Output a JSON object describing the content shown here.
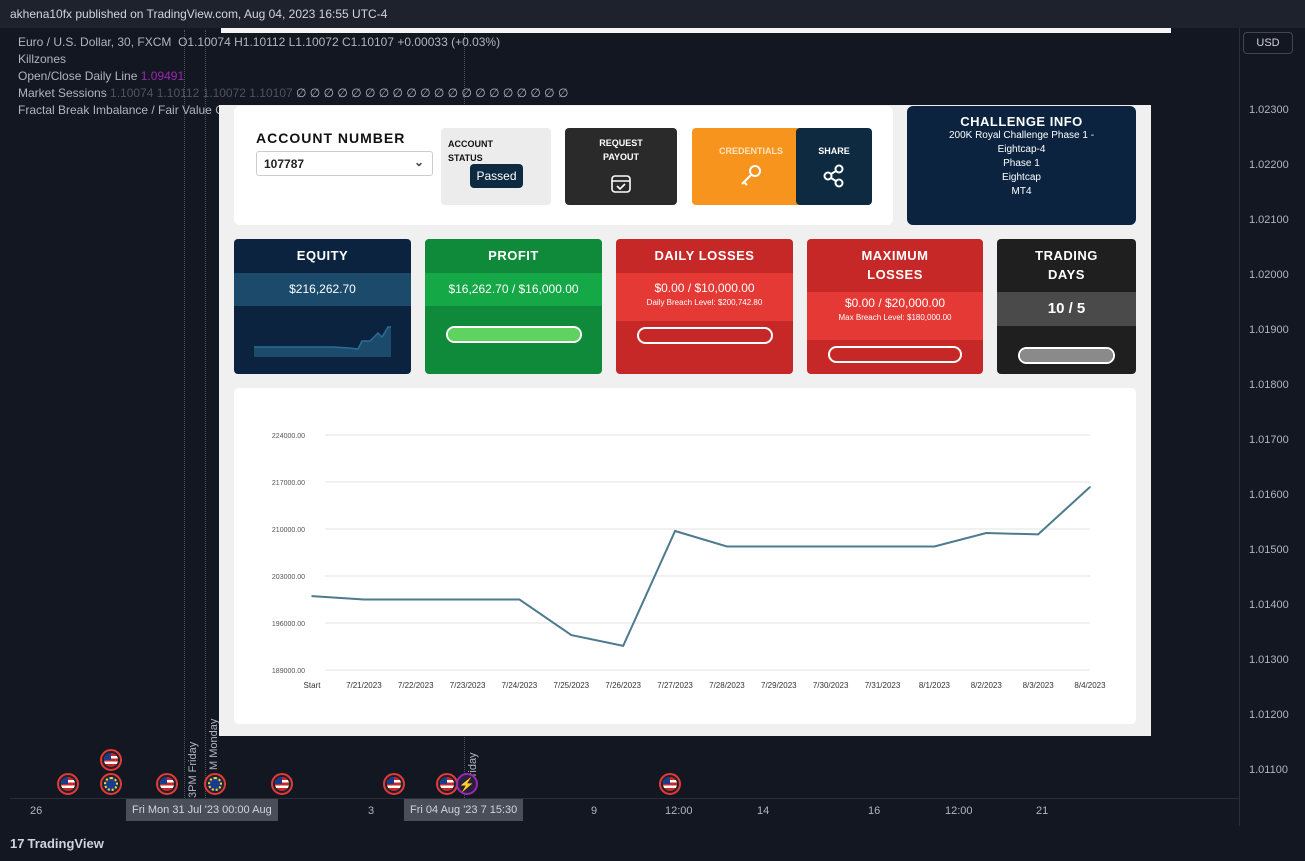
{
  "publish_line": "akhena10fx published on TradingView.com, Aug 04, 2023 16:55 UTC-4",
  "currency_button": "USD",
  "legend": {
    "symbol": "Euro / U.S. Dollar, 30, FXCM",
    "ohlc": "O1.10074  H1.10112  L1.10072  C1.10107  +0.00033 (+0.03%)",
    "killzones": "Killzones",
    "open_close_label": "Open/Close Daily Line",
    "open_close_value": "1.09491",
    "market_sessions": "Market Sessions",
    "market_sessions_values": "1.10074  1.10112  1.10072  1.10107",
    "market_sessions_zeros": "∅ ∅ ∅ ∅ ∅ ∅ ∅ ∅ ∅ ∅ ∅ ∅ ∅ ∅ ∅ ∅ ∅ ∅ ∅ ∅",
    "fractal": "Fractal Break Imbalance / Fair Value Gap (FVG) / Liquidity Void"
  },
  "price_axis": [
    "1.02300",
    "1.02200",
    "1.02100",
    "1.02000",
    "1.01900",
    "1.01800",
    "1.01700",
    "1.01600",
    "1.01500",
    "1.01400",
    "1.01300",
    "1.01200",
    "1.01100"
  ],
  "vertical_labels": {
    "friday_pm": "3PM Friday",
    "monday": "M Monday",
    "friday": "Friday"
  },
  "time_axis": {
    "labels": [
      "26",
      "3",
      "9",
      "12:00",
      "14",
      "16",
      "12:00",
      "21"
    ],
    "box_left": "Fri Mon 31 Jul '23  00:00 Aug",
    "box_right": "Fri 04 Aug '23  7 15:30"
  },
  "footer_brand": "TradingView",
  "footer_mark": "17",
  "dashboard": {
    "account_title": "ACCOUNT NUMBER",
    "account_number": "107787",
    "status_label": "ACCOUNT STATUS",
    "status_value": "Passed",
    "request_payout": "REQUEST PAYOUT",
    "credentials": "CREDENTIALS",
    "share": "SHARE",
    "challenge": {
      "title": "CHALLENGE INFO",
      "lines": [
        "200K Royal Challenge Phase 1 -",
        "Eightcap-4",
        "Phase 1",
        "Eightcap",
        "MT4"
      ]
    },
    "equity": {
      "label": "EQUITY",
      "value": "$216,262.70"
    },
    "profit": {
      "label": "PROFIT",
      "value": "$16,262.70 / $16,000.00",
      "progress": 1.0
    },
    "daily": {
      "label": "DAILY LOSSES",
      "value": "$0.00 / $10,000.00",
      "sub": "Daily Breach Level: $200,742.80",
      "progress": 0.0
    },
    "max": {
      "label_1": "MAXIMUM",
      "label_2": "LOSSES",
      "value": "$0.00 / $20,000.00",
      "sub": "Max Breach Level: $180,000.00",
      "progress": 0.0
    },
    "days": {
      "label_1": "TRADING",
      "label_2": "DAYS",
      "value": "10 / 5",
      "progress": 1.0
    }
  },
  "chart_data": {
    "type": "line",
    "title": "",
    "xlabel": "",
    "ylabel": "",
    "categories": [
      "Start",
      "7/21/2023",
      "7/22/2023",
      "7/23/2023",
      "7/24/2023",
      "7/25/2023",
      "7/26/2023",
      "7/27/2023",
      "7/28/2023",
      "7/29/2023",
      "7/30/2023",
      "7/31/2023",
      "8/1/2023",
      "8/2/2023",
      "8/3/2023",
      "8/4/2023"
    ],
    "values": [
      200000,
      199500,
      199500,
      199500,
      199500,
      194200,
      192600,
      209700,
      207400,
      207400,
      207400,
      207400,
      207400,
      209400,
      209200,
      216262.7
    ],
    "yticks": [
      "189000.00",
      "196000.00",
      "203000.00",
      "210000.00",
      "217000.00",
      "224000.00"
    ],
    "ylim": [
      189000,
      224000
    ],
    "grid": true,
    "color": "#4d7a8f"
  }
}
